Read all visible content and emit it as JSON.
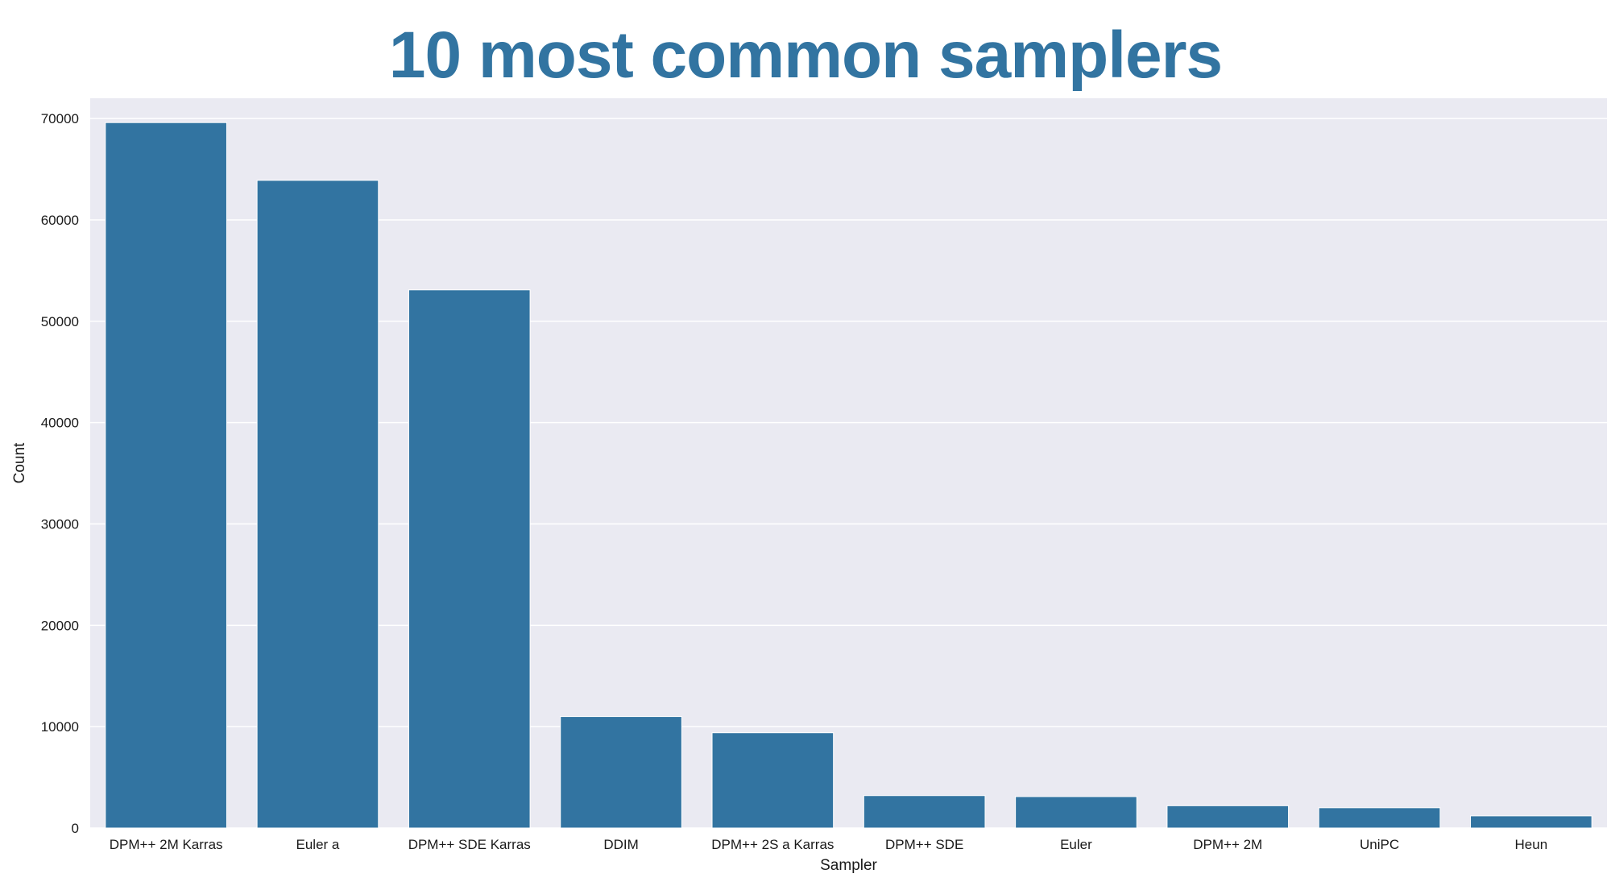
{
  "chart_data": {
    "type": "bar",
    "title": "10 most common samplers",
    "xlabel": "Sampler",
    "ylabel": "Count",
    "categories": [
      "DPM++ 2M Karras",
      "Euler a",
      "DPM++ SDE Karras",
      "DDIM",
      "DPM++ 2S a Karras",
      "DPM++ SDE",
      "Euler",
      "DPM++ 2M",
      "UniPC",
      "Heun"
    ],
    "values": [
      69600,
      63900,
      53100,
      11000,
      9400,
      3200,
      3100,
      2200,
      2000,
      1200
    ],
    "ylim": [
      0,
      72000
    ],
    "yticks": [
      0,
      10000,
      20000,
      30000,
      40000,
      50000,
      60000,
      70000
    ],
    "grid": true,
    "legend": "none",
    "colors": {
      "bar": "#3274a1",
      "background": "#eaeaf2",
      "grid": "#ffffff",
      "title": "#3274a1"
    }
  }
}
